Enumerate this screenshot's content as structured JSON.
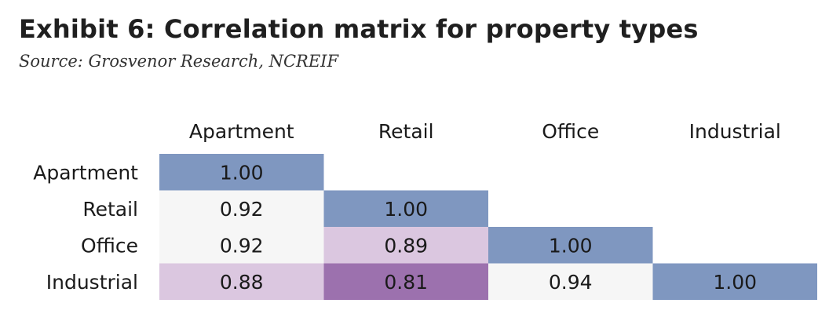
{
  "title": "Exhibit 6: Correlation matrix for property types",
  "source": "Source: Grosvenor Research, NCREIF",
  "colors": {
    "diagonal": "#7f97c0",
    "low": "#f6f6f6",
    "mid": "#dbc7e0",
    "high": "#9c71ae",
    "background": "#ffffff"
  },
  "chart_data": {
    "type": "heatmap",
    "title": "Exhibit 6: Correlation matrix for property types",
    "columns": [
      "Apartment",
      "Retail",
      "Office",
      "Industrial"
    ],
    "rows": [
      "Apartment",
      "Retail",
      "Office",
      "Industrial"
    ],
    "values": [
      [
        "1.00",
        null,
        null,
        null
      ],
      [
        "0.92",
        "1.00",
        null,
        null
      ],
      [
        "0.92",
        "0.89",
        "1.00",
        null
      ],
      [
        "0.88",
        "0.81",
        "0.94",
        "1.00"
      ]
    ],
    "lower_triangle_only": true,
    "color_scale": "diagonal blue; off-diagonal shaded purple by strength (lower correlation = darker)"
  }
}
